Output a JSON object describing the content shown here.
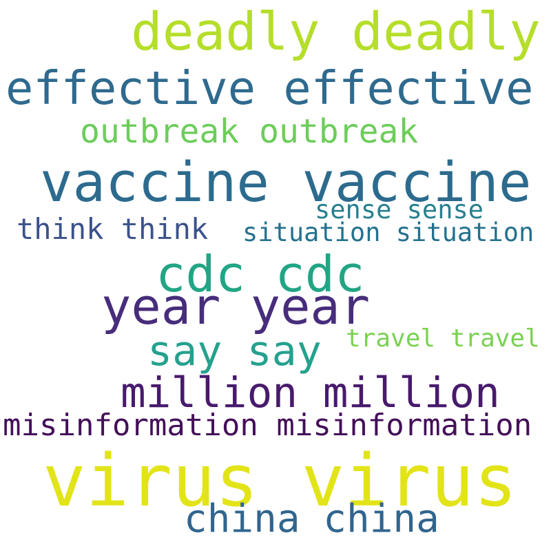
{
  "words": [
    {
      "text": "deadly deadly",
      "color": "#b5de2b"
    },
    {
      "text": "effective effective",
      "color": "#2f6a8e"
    },
    {
      "text": "outbreak outbreak",
      "color": "#6ccd5a"
    },
    {
      "text": "vaccine vaccine",
      "color": "#2c6b8e"
    },
    {
      "text": "sense sense",
      "color": "#277f8e"
    },
    {
      "text": "think think",
      "color": "#3b528b"
    },
    {
      "text": "situation situation",
      "color": "#23718e"
    },
    {
      "text": "cdc cdc",
      "color": "#21a585"
    },
    {
      "text": "year year",
      "color": "#472d7b"
    },
    {
      "text": "travel travel",
      "color": "#7ad151"
    },
    {
      "text": "say say",
      "color": "#25a18e"
    },
    {
      "text": "million million",
      "color": "#481a6c"
    },
    {
      "text": "misinformation misinformation",
      "color": "#440f59"
    },
    {
      "text": "virus virus",
      "color": "#e2e418"
    },
    {
      "text": "china china",
      "color": "#31658e"
    }
  ]
}
